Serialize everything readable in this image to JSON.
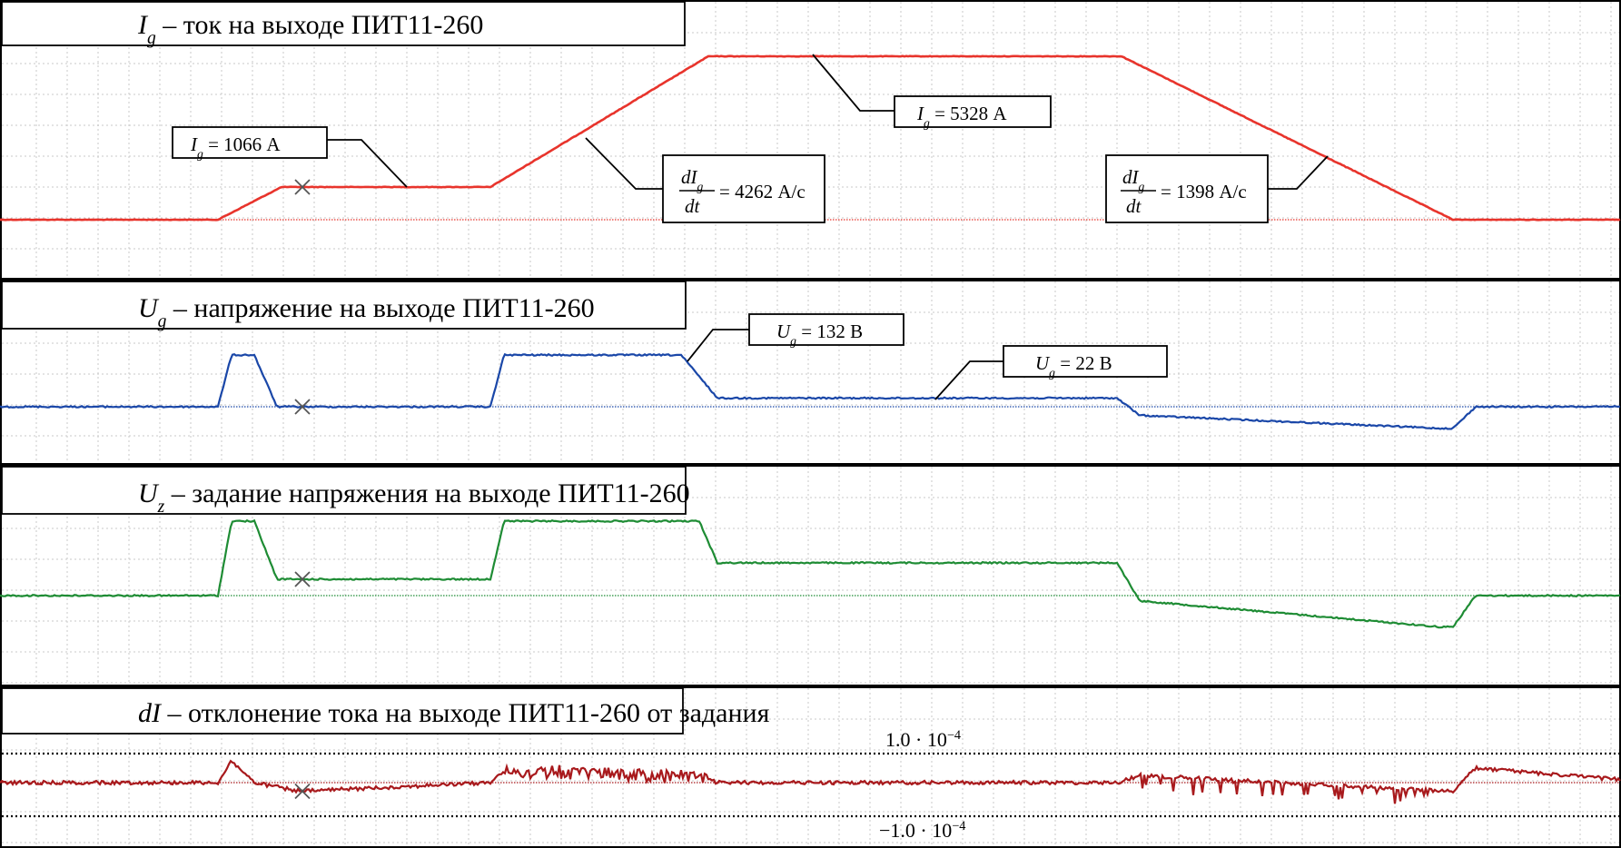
{
  "panels": [
    {
      "id": "ig",
      "title_symbol": "I",
      "title_sub": "g",
      "title_text": " – ток на выходе ПИТ11-260",
      "color": "#e8342c",
      "annotations": [
        {
          "sym": "I",
          "sub": "g",
          "text": "= 1066 А"
        },
        {
          "frac_num": "dI",
          "frac_num_sub": "g",
          "frac_den": "dt",
          "text": "= 4262 А/с"
        },
        {
          "sym": "I",
          "sub": "g",
          "text": "= 5328 А"
        },
        {
          "frac_num": "dI",
          "frac_num_sub": "g",
          "frac_den": "dt",
          "text": "= 1398 А/с"
        }
      ]
    },
    {
      "id": "ug",
      "title_symbol": "U",
      "title_sub": "g",
      "title_text": " – напряжение на выходе ПИТ11-260",
      "color": "#1a47a8",
      "annotations": [
        {
          "sym": "U",
          "sub": "g",
          "text": "= 132 В"
        },
        {
          "sym": "U",
          "sub": "g",
          "text": "= 22 В"
        }
      ]
    },
    {
      "id": "uz",
      "title_symbol": "U",
      "title_sub": "z",
      "title_text": " – задание напряжения на выходе ПИТ11-260",
      "color": "#1e8c34",
      "annotations": []
    },
    {
      "id": "di",
      "title_symbol": "dI",
      "title_sub": "",
      "title_text": " – отклонение тока на выходе ПИТ11-260 от задания",
      "color": "#a8191c",
      "limits": {
        "upper": "1.0 · 10",
        "upper_exp": "−4",
        "lower": "−1.0 · 10",
        "lower_exp": "−4"
      }
    }
  ],
  "chart_data": {
    "type": "line",
    "title": "",
    "grid": true,
    "series": [
      {
        "name": "Ig",
        "x": [
          0,
          240,
          310,
          540,
          780,
          1235,
          1600,
          1785
        ],
        "y": [
          0,
          0,
          1066,
          1066,
          5328,
          5328,
          0,
          0
        ]
      },
      {
        "name": "Ug",
        "x": [
          0,
          240,
          255,
          280,
          305,
          330,
          540,
          555,
          750,
          790,
          1230,
          1255,
          1585,
          1600,
          1625,
          1785
        ],
        "y": [
          0,
          0,
          132,
          132,
          0,
          0,
          0,
          132,
          132,
          22,
          22,
          -22,
          -55,
          -55,
          0,
          0
        ]
      },
      {
        "name": "Uz",
        "x": [
          0,
          240,
          255,
          280,
          305,
          330,
          540,
          555,
          770,
          790,
          1230,
          1255,
          1585,
          1600,
          1625,
          1785
        ],
        "y": [
          0,
          0,
          1.0,
          1.0,
          0.22,
          0.22,
          0.22,
          1.0,
          1.0,
          0.44,
          0.44,
          -0.07,
          -0.42,
          -0.42,
          0,
          0
        ]
      },
      {
        "name": "dI",
        "x": [
          0,
          240,
          255,
          280,
          330,
          540,
          555,
          770,
          790,
          1230,
          1255,
          1600,
          1625,
          1785
        ],
        "y": [
          0,
          0,
          0.75,
          0,
          -0.3,
          0,
          0.4,
          0.2,
          0,
          0,
          0.25,
          -0.3,
          0.5,
          0.1
        ]
      }
    ],
    "limits_dI": [
      0.0001,
      -0.0001
    ]
  }
}
